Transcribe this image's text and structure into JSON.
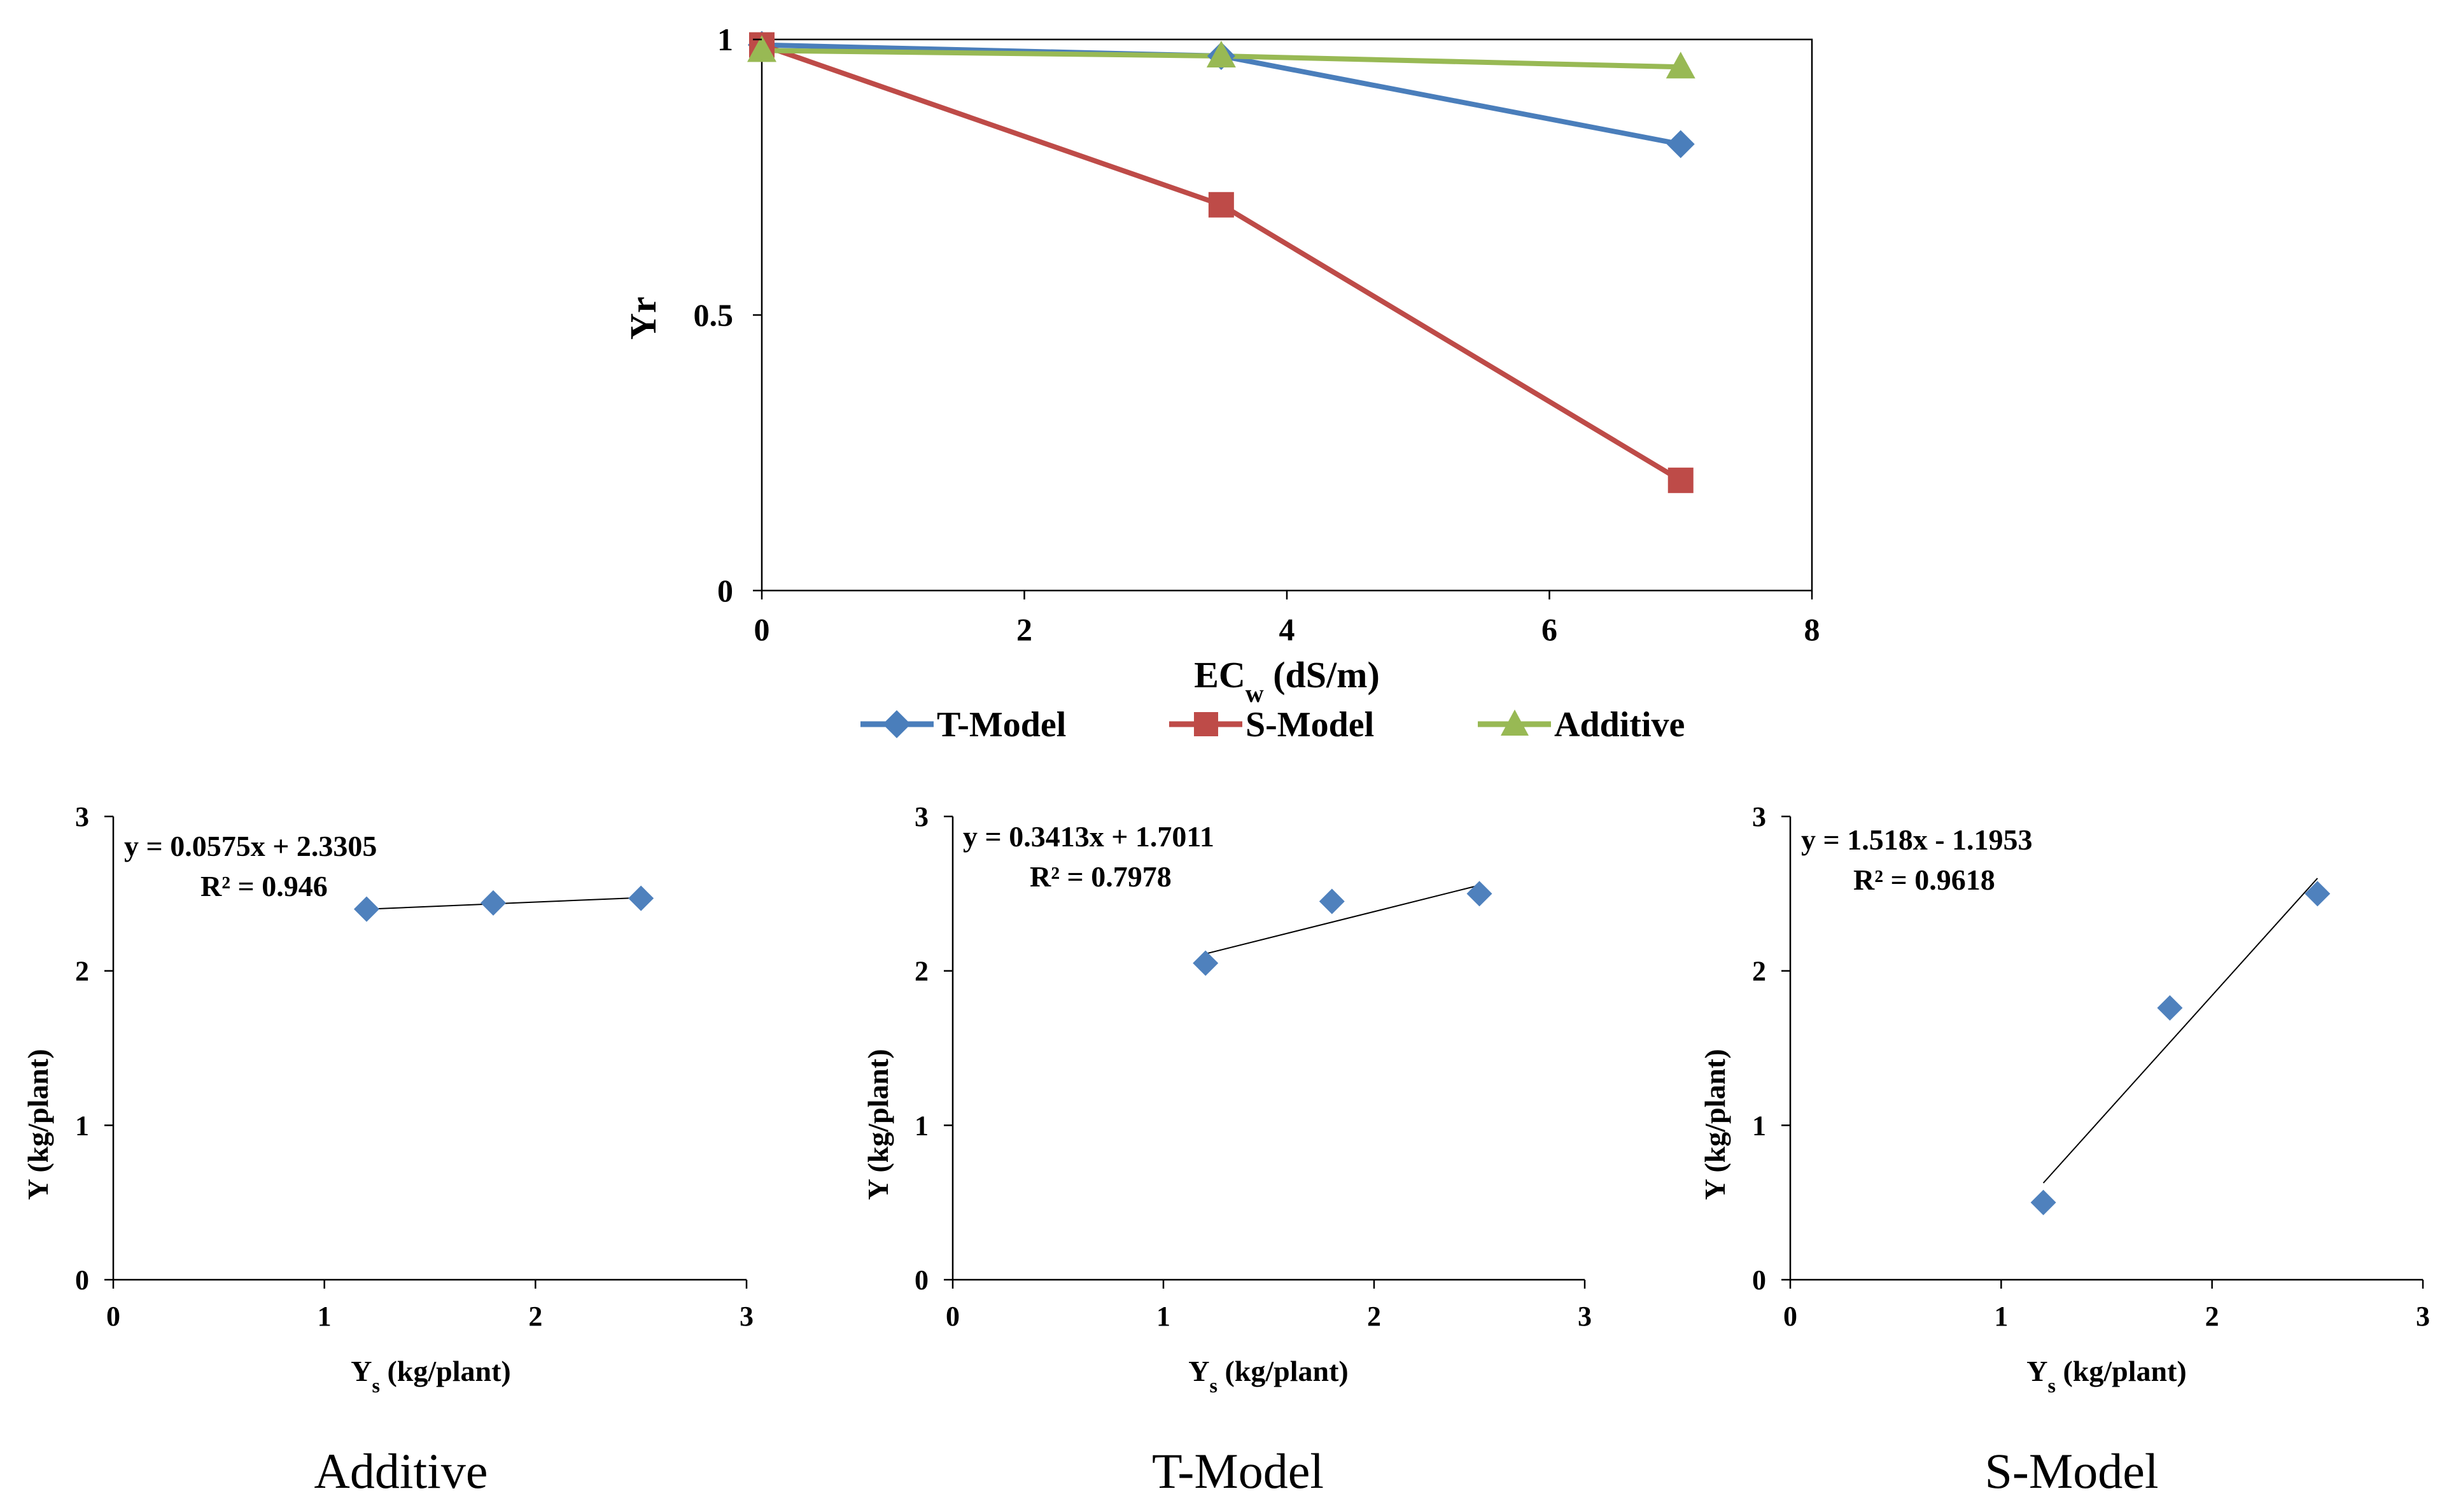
{
  "chart_data": [
    {
      "type": "line",
      "xlabel": "EC",
      "xlabel_sub": "w",
      "xlabel_unit": " (dS/m)",
      "ylabel": "Yr",
      "xlim": [
        0,
        8
      ],
      "ylim": [
        0,
        1
      ],
      "x_ticks": [
        "0",
        "2",
        "4",
        "6",
        "8"
      ],
      "y_ticks": [
        "0",
        "0.5",
        "1"
      ],
      "x": [
        0,
        3.5,
        7
      ],
      "legend_position": "bottom",
      "series": [
        {
          "name": "T-Model",
          "values": [
            0.99,
            0.97,
            0.81
          ],
          "color": "#4a7ebb",
          "marker": "diamond"
        },
        {
          "name": "S-Model",
          "values": [
            0.99,
            0.7,
            0.2
          ],
          "color": "#be4b48",
          "marker": "square"
        },
        {
          "name": "Additive",
          "values": [
            0.98,
            0.97,
            0.95
          ],
          "color": "#98b954",
          "marker": "triangle"
        }
      ]
    },
    {
      "type": "scatter",
      "caption": "Additive",
      "xlabel": "Y",
      "xlabel_sub": "s",
      "xlabel_unit": " (kg/plant)",
      "ylabel": "Y (kg/plant)",
      "xlim": [
        0,
        3
      ],
      "ylim": [
        0,
        3
      ],
      "x_ticks": [
        "0",
        "1",
        "2",
        "3"
      ],
      "y_ticks": [
        "0",
        "1",
        "2",
        "3"
      ],
      "x": [
        1.2,
        1.8,
        2.5
      ],
      "values": [
        2.4,
        2.44,
        2.47
      ],
      "equation": "y = 0.0575x + 2.3305",
      "r2": "R² = 0.946",
      "trend": {
        "slope": 0.0575,
        "intercept": 2.3305,
        "x_from": 1.2,
        "x_to": 2.5
      },
      "color": "#4f81bd"
    },
    {
      "type": "scatter",
      "caption": "T-Model",
      "xlabel": "Y",
      "xlabel_sub": "s",
      "xlabel_unit": " (kg/plant)",
      "ylabel": "Y (kg/plant)",
      "xlim": [
        0,
        3
      ],
      "ylim": [
        0,
        3
      ],
      "x_ticks": [
        "0",
        "1",
        "2",
        "3"
      ],
      "y_ticks": [
        "0",
        "1",
        "2",
        "3"
      ],
      "x": [
        1.2,
        1.8,
        2.5
      ],
      "values": [
        2.05,
        2.45,
        2.5
      ],
      "equation": "y = 0.3413x + 1.7011",
      "r2": "R² = 0.7978",
      "trend": {
        "slope": 0.3413,
        "intercept": 1.7011,
        "x_from": 1.2,
        "x_to": 2.5
      },
      "color": "#4f81bd"
    },
    {
      "type": "scatter",
      "caption": "S-Model",
      "xlabel": "Y",
      "xlabel_sub": "s",
      "xlabel_unit": " (kg/plant)",
      "ylabel": "Y (kg/plant)",
      "xlim": [
        0,
        3
      ],
      "ylim": [
        0,
        3
      ],
      "x_ticks": [
        "0",
        "1",
        "2",
        "3"
      ],
      "y_ticks": [
        "0",
        "1",
        "2",
        "3"
      ],
      "x": [
        1.2,
        1.8,
        2.5
      ],
      "values": [
        0.5,
        1.76,
        2.5
      ],
      "equation": "y = 1.518x - 1.1953",
      "r2": "R² = 0.9618",
      "trend": {
        "slope": 1.518,
        "intercept": -1.1953,
        "x_from": 1.2,
        "x_to": 2.5
      },
      "color": "#4f81bd"
    }
  ]
}
